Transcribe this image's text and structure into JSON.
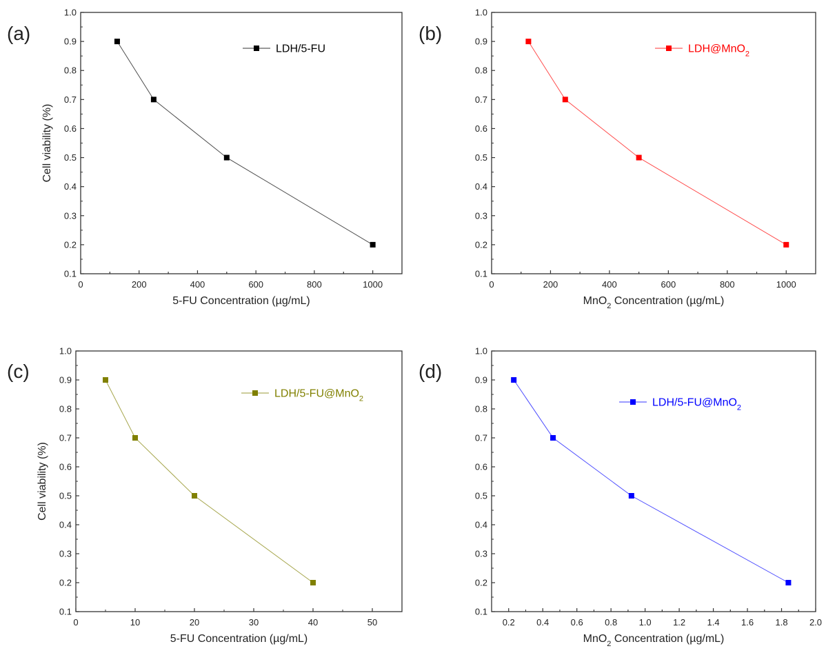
{
  "chart_data": [
    {
      "type": "line",
      "panel_label": "(a)",
      "xlabel": "5-FU  Concentration (µg/mL)",
      "xlabel_sub": "",
      "xlabel_rest": "",
      "ylabel": "Cell viability (%)",
      "xlim": [
        0,
        1100
      ],
      "ylim": [
        0.1,
        1.0
      ],
      "xticks": [
        0,
        200,
        400,
        600,
        800,
        1000
      ],
      "xtick_labels": [
        "0",
        "200",
        "400",
        "600",
        "800",
        "1000"
      ],
      "yticks": [
        0.1,
        0.2,
        0.3,
        0.4,
        0.5,
        0.6,
        0.7,
        0.8,
        0.9,
        1.0
      ],
      "ytick_labels": [
        "0.1",
        "0.2",
        "0.3",
        "0.4",
        "0.5",
        "0.6",
        "0.7",
        "0.8",
        "0.9",
        "1.0"
      ],
      "legend_position": "top-right",
      "series": [
        {
          "name": "LDH/5-FU",
          "name_sub": "",
          "color": "#000000",
          "x": [
            125,
            250,
            500,
            1000
          ],
          "y": [
            0.9,
            0.7,
            0.5,
            0.2
          ]
        }
      ]
    },
    {
      "type": "line",
      "panel_label": "(b)",
      "xlabel": "MnO",
      "xlabel_sub": "2",
      "xlabel_rest": "  Concentration (µg/mL)",
      "ylabel": "",
      "xlim": [
        0,
        1100
      ],
      "ylim": [
        0.1,
        1.0
      ],
      "xticks": [
        0,
        200,
        400,
        600,
        800,
        1000
      ],
      "xtick_labels": [
        "0",
        "200",
        "400",
        "600",
        "800",
        "1000"
      ],
      "yticks": [
        0.1,
        0.2,
        0.3,
        0.4,
        0.5,
        0.6,
        0.7,
        0.8,
        0.9,
        1.0
      ],
      "ytick_labels": [
        "0.1",
        "0.2",
        "0.3",
        "0.4",
        "0.5",
        "0.6",
        "0.7",
        "0.8",
        "0.9",
        "1.0"
      ],
      "legend_position": "top-right",
      "series": [
        {
          "name": "LDH@MnO",
          "name_sub": "2",
          "color": "#ff0000",
          "x": [
            125,
            250,
            500,
            1000
          ],
          "y": [
            0.9,
            0.7,
            0.5,
            0.2
          ]
        }
      ]
    },
    {
      "type": "line",
      "panel_label": "(c)",
      "xlabel": "5-FU  Concentration (µg/mL)",
      "xlabel_sub": "",
      "xlabel_rest": "",
      "ylabel": "Cell viability (%)",
      "xlim": [
        0,
        55
      ],
      "ylim": [
        0.1,
        1.0
      ],
      "xticks": [
        0,
        10,
        20,
        30,
        40,
        50
      ],
      "xtick_labels": [
        "0",
        "10",
        "20",
        "30",
        "40",
        "50"
      ],
      "yticks": [
        0.1,
        0.2,
        0.3,
        0.4,
        0.5,
        0.6,
        0.7,
        0.8,
        0.9,
        1.0
      ],
      "ytick_labels": [
        "0.1",
        "0.2",
        "0.3",
        "0.4",
        "0.5",
        "0.6",
        "0.7",
        "0.8",
        "0.9",
        "1.0"
      ],
      "legend_position": "top-right",
      "series": [
        {
          "name": "LDH/5-FU@MnO",
          "name_sub": "2",
          "color": "#808000",
          "x": [
            5,
            10,
            20,
            40
          ],
          "y": [
            0.9,
            0.7,
            0.5,
            0.2
          ]
        }
      ]
    },
    {
      "type": "line",
      "panel_label": "(d)",
      "xlabel": "MnO",
      "xlabel_sub": "2",
      "xlabel_rest": "  Concentration (µg/mL)",
      "ylabel": "",
      "xlim": [
        0.1,
        2.0
      ],
      "ylim": [
        0.1,
        1.0
      ],
      "xticks": [
        0.2,
        0.4,
        0.6,
        0.8,
        1.0,
        1.2,
        1.4,
        1.6,
        1.8,
        2.0
      ],
      "xtick_labels": [
        "0.2",
        "0.4",
        "0.6",
        "0.8",
        "1.0",
        "1.2",
        "1.4",
        "1.6",
        "1.8",
        "2.0"
      ],
      "yticks": [
        0.1,
        0.2,
        0.3,
        0.4,
        0.5,
        0.6,
        0.7,
        0.8,
        0.9,
        1.0
      ],
      "ytick_labels": [
        "0.1",
        "0.2",
        "0.3",
        "0.4",
        "0.5",
        "0.6",
        "0.7",
        "0.8",
        "0.9",
        "1.0"
      ],
      "legend_position": "top-right",
      "series": [
        {
          "name": "LDH/5-FU@MnO",
          "name_sub": "2",
          "color": "#0000ff",
          "x": [
            0.23,
            0.46,
            0.92,
            1.84
          ],
          "y": [
            0.9,
            0.7,
            0.5,
            0.2
          ]
        }
      ]
    }
  ]
}
